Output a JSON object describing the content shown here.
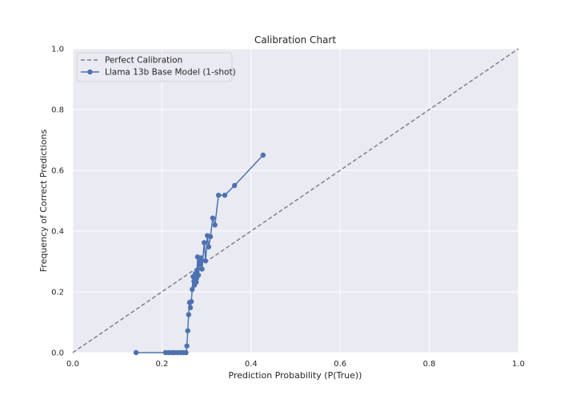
{
  "chart_data": {
    "type": "line",
    "title": "Calibration Chart",
    "xlabel": "Prediction Probability (P(True))",
    "ylabel": "Frequency of Correct Predictions",
    "xlim": [
      0.0,
      1.0
    ],
    "ylim": [
      0.0,
      1.0
    ],
    "x_ticks": [
      "0.0",
      "0.2",
      "0.4",
      "0.6",
      "0.8",
      "1.0"
    ],
    "y_ticks": [
      "0.0",
      "0.2",
      "0.4",
      "0.6",
      "0.8",
      "1.0"
    ],
    "grid": true,
    "legend_position": "top-left",
    "series": [
      {
        "name": "Perfect Calibration",
        "style": "dashed",
        "color": "#808080",
        "x": [
          0.0,
          1.0
        ],
        "y": [
          0.0,
          1.0
        ]
      },
      {
        "name": "Llama 13b Base Model (1-shot)",
        "style": "solid-markers",
        "color": "#4c72b0",
        "x": [
          0.142,
          0.208,
          0.215,
          0.222,
          0.228,
          0.235,
          0.242,
          0.248,
          0.254,
          0.256,
          0.258,
          0.26,
          0.262,
          0.264,
          0.266,
          0.268,
          0.27,
          0.272,
          0.273,
          0.275,
          0.276,
          0.277,
          0.278,
          0.279,
          0.28,
          0.282,
          0.284,
          0.286,
          0.288,
          0.29,
          0.295,
          0.298,
          0.302,
          0.305,
          0.309,
          0.314,
          0.319,
          0.327,
          0.341,
          0.363,
          0.427
        ],
        "y": [
          0.0,
          0.0,
          0.0,
          0.0,
          0.0,
          0.0,
          0.0,
          0.0,
          0.0,
          0.022,
          0.072,
          0.125,
          0.165,
          0.148,
          0.168,
          0.208,
          0.25,
          0.235,
          0.222,
          0.26,
          0.252,
          0.232,
          0.245,
          0.27,
          0.315,
          0.255,
          0.29,
          0.3,
          0.312,
          0.275,
          0.362,
          0.302,
          0.385,
          0.348,
          0.382,
          0.443,
          0.42,
          0.518,
          0.518,
          0.55,
          0.65
        ]
      }
    ]
  }
}
